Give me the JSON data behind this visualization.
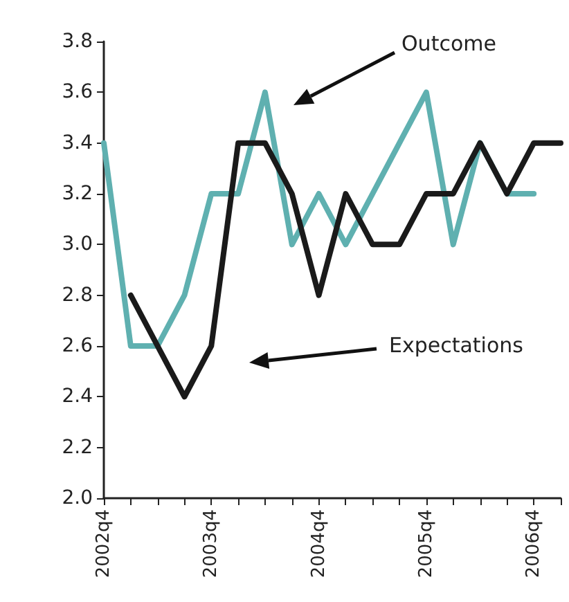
{
  "chart_data": {
    "type": "line",
    "categories": [
      "2002q4",
      null,
      null,
      null,
      "2003q4",
      null,
      null,
      null,
      "2004q4",
      null,
      null,
      null,
      "2005q4",
      null,
      null,
      null,
      "2006q4",
      null
    ],
    "series": [
      {
        "color": "#5fb0b0",
        "values": [
          3.4,
          2.6,
          2.6,
          2.8,
          3.2,
          3.2,
          3.6,
          3.0,
          3.2,
          3.0,
          3.2,
          3.4,
          3.6,
          3.0,
          3.4,
          3.2,
          3.2,
          null
        ]
      },
      {
        "color": "#1a1a1a",
        "values": [
          null,
          2.8,
          2.6,
          2.4,
          2.6,
          3.4,
          3.4,
          3.2,
          2.8,
          3.2,
          3.0,
          3.0,
          3.2,
          3.2,
          3.4,
          3.2,
          3.4,
          3.4
        ]
      }
    ],
    "ylim": [
      2.0,
      3.8
    ],
    "yticks": [
      {
        "value": 2.0,
        "label": "2.0"
      },
      {
        "value": 2.2,
        "label": "2.2"
      },
      {
        "value": 2.4,
        "label": "2.4"
      },
      {
        "value": 2.6,
        "label": "2.6"
      },
      {
        "value": 2.8,
        "label": "2.8"
      },
      {
        "value": 3.0,
        "label": "3.0"
      },
      {
        "value": 3.2,
        "label": "3.2"
      },
      {
        "value": 3.4,
        "label": "3.4"
      },
      {
        "value": 3.6,
        "label": "3.6"
      },
      {
        "value": 3.8,
        "label": "3.8"
      }
    ],
    "annotations": [
      "Outcome",
      "Expectations"
    ],
    "grid": false,
    "marker": "none",
    "line_style": "solid"
  }
}
